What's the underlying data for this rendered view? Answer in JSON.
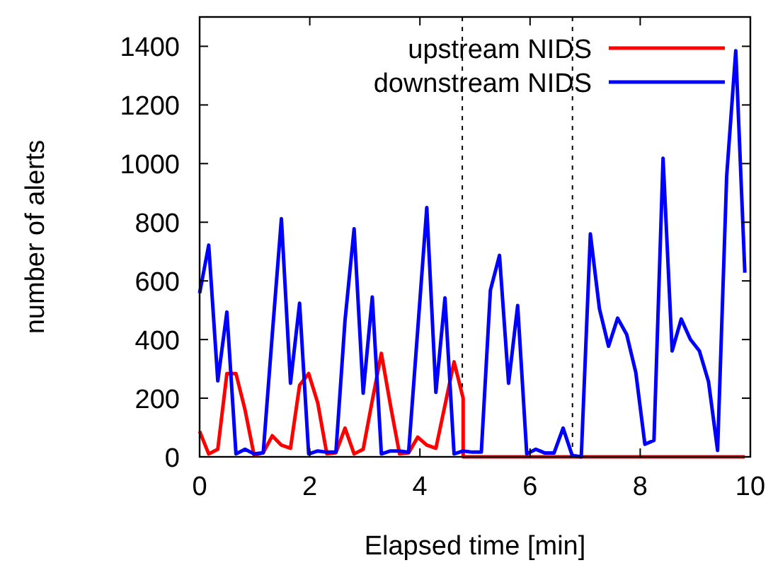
{
  "chart_data": {
    "type": "line",
    "xlabel": "Elapsed time [min]",
    "ylabel": "number of alerts",
    "x": [
      0,
      0.165,
      0.33,
      0.495,
      0.66,
      0.825,
      0.99,
      1.155,
      1.32,
      1.485,
      1.65,
      1.815,
      1.98,
      2.145,
      2.31,
      2.475,
      2.64,
      2.805,
      2.97,
      3.135,
      3.3,
      3.465,
      3.63,
      3.795,
      3.96,
      4.125,
      4.29,
      4.455,
      4.62,
      4.785,
      4.95,
      5.115,
      5.28,
      5.445,
      5.61,
      5.775,
      5.94,
      6.105,
      6.27,
      6.435,
      6.6,
      6.765,
      6.93,
      7.095,
      7.26,
      7.425,
      7.59,
      7.755,
      7.92,
      8.085,
      8.25,
      8.415,
      8.58,
      8.745,
      8.91,
      9.075,
      9.24,
      9.405,
      9.57,
      9.735,
      9.9
    ],
    "series": [
      {
        "name": "upstream NIDS",
        "color": "#ff0000",
        "x": [
          0,
          0.165,
          0.33,
          0.495,
          0.66,
          0.825,
          0.99,
          1.155,
          1.32,
          1.485,
          1.65,
          1.815,
          1.98,
          2.145,
          2.31,
          2.475,
          2.64,
          2.805,
          2.97,
          3.135,
          3.3,
          3.465,
          3.63,
          3.795,
          3.96,
          4.125,
          4.29,
          4.455,
          4.62,
          4.785,
          4.785,
          4.95,
          5.115,
          5.28,
          5.445,
          5.61,
          5.775,
          5.94,
          6.105,
          6.27,
          6.435,
          6.6,
          6.765,
          6.93,
          7.095,
          7.26,
          7.425,
          7.59,
          7.755,
          7.92,
          8.085,
          8.25,
          8.415,
          8.58,
          8.745,
          8.91,
          9.075,
          9.24,
          9.405,
          9.57,
          9.735,
          9.9
        ],
        "values": [
          87,
          10,
          26,
          284,
          284,
          160,
          5,
          14,
          72,
          40,
          29,
          244,
          284,
          184,
          10,
          14,
          98,
          10,
          26,
          192,
          353,
          176,
          10,
          14,
          67,
          40,
          29,
          176,
          324,
          200,
          0,
          0,
          0,
          0,
          0,
          0,
          0,
          0,
          0,
          0,
          0,
          0,
          0,
          0,
          0,
          0,
          0,
          0,
          0,
          0,
          0,
          0,
          0,
          0,
          0,
          0,
          0,
          0,
          0,
          0,
          0,
          0
        ]
      },
      {
        "name": "downstream NIDS",
        "color": "#0000ff",
        "values": [
          558,
          722,
          259,
          494,
          10,
          26,
          10,
          14,
          419,
          812,
          251,
          524,
          10,
          20,
          16,
          16,
          465,
          778,
          217,
          545,
          10,
          20,
          20,
          16,
          433,
          850,
          220,
          542,
          10,
          20,
          16,
          16,
          568,
          687,
          251,
          516,
          10,
          26,
          13,
          13,
          98,
          5,
          0,
          760,
          505,
          377,
          473,
          417,
          288,
          43,
          56,
          1018,
          361,
          470,
          401,
          361,
          257,
          22,
          957,
          1385,
          628
        ]
      }
    ],
    "xlim": [
      0,
      10
    ],
    "xticks": [
      0,
      2,
      4,
      6,
      8,
      10
    ],
    "ylim": [
      0,
      1500
    ],
    "yticks": [
      0,
      200,
      400,
      600,
      800,
      1000,
      1200,
      1400
    ],
    "ref_lines": [
      {
        "axis": "x",
        "value": 4.77,
        "color": "#000000",
        "line_style": "dotted"
      },
      {
        "axis": "x",
        "value": 6.77,
        "color": "#000000",
        "line_style": "dotted"
      }
    ],
    "legend": "top right",
    "grid": false
  }
}
